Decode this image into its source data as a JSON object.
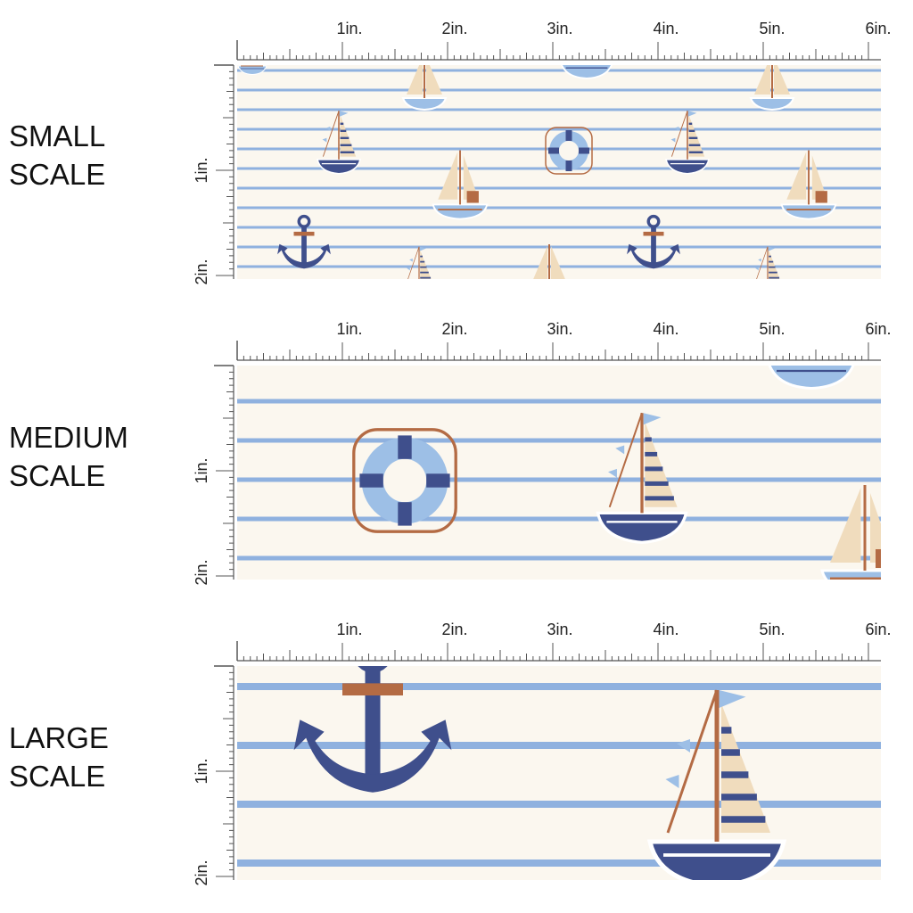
{
  "panels": [
    {
      "label_line1": "SMALL",
      "label_line2": "SCALE",
      "top_ruler": [
        "1in.",
        "2in.",
        "3in.",
        "4in.",
        "5in.",
        "6in."
      ],
      "side_ruler": [
        "1in.",
        "2in."
      ]
    },
    {
      "label_line1": "MEDIUM",
      "label_line2": "SCALE",
      "top_ruler": [
        "1in.",
        "2in.",
        "3in.",
        "4in.",
        "5in.",
        "6in."
      ],
      "side_ruler": [
        "1in.",
        "2in."
      ]
    },
    {
      "label_line1": "LARGE",
      "label_line2": "SCALE",
      "top_ruler": [
        "1in.",
        "2in.",
        "3in.",
        "4in.",
        "5in.",
        "6in."
      ],
      "side_ruler": [
        "1in.",
        "2in."
      ]
    }
  ],
  "colors": {
    "background": "#fbf7ef",
    "stripe": "#8fb1df",
    "navy": "#3f4f8c",
    "light_blue": "#9dbfe6",
    "tan": "#f0dcbd",
    "rust": "#b46b44",
    "ruler": "#555555"
  },
  "icons": [
    "sailboat-icon",
    "anchor-icon",
    "life-ring-icon",
    "rowboat-icon"
  ]
}
